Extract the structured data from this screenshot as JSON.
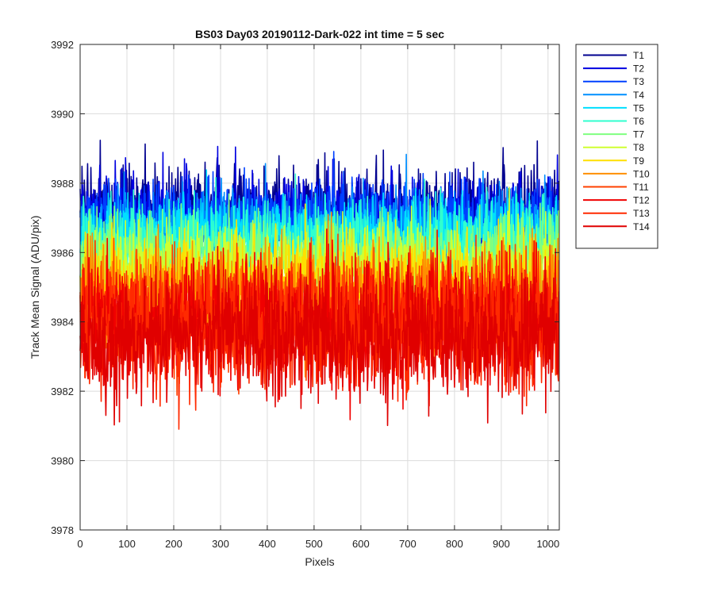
{
  "chart_data": {
    "type": "line",
    "title": "BS03 Day03 20190112-Dark-022 int time = 5 sec",
    "xlabel": "Pixels",
    "ylabel": "Track Mean Signal (ADU/pix)",
    "xlim": [
      0,
      1024
    ],
    "ylim": [
      3978,
      3992
    ],
    "xticks": [
      0,
      100,
      200,
      300,
      400,
      500,
      600,
      700,
      800,
      900,
      1000
    ],
    "yticks": [
      3978,
      3980,
      3982,
      3984,
      3986,
      3988,
      3990,
      3992
    ],
    "grid": true,
    "legend_position": "outside-top-right",
    "n_points": 1024,
    "series": [
      {
        "name": "T1",
        "color": "#00008f",
        "mean": 3987.3,
        "noise": 0.55
      },
      {
        "name": "T2",
        "color": "#0000e0",
        "mean": 3987.1,
        "noise": 0.55
      },
      {
        "name": "T3",
        "color": "#0040ff",
        "mean": 3986.9,
        "noise": 0.55
      },
      {
        "name": "T4",
        "color": "#008fff",
        "mean": 3986.7,
        "noise": 0.55
      },
      {
        "name": "T5",
        "color": "#00dfff",
        "mean": 3986.5,
        "noise": 0.55
      },
      {
        "name": "T6",
        "color": "#30ffcf",
        "mean": 3986.2,
        "noise": 0.6
      },
      {
        "name": "T7",
        "color": "#7fff80",
        "mean": 3985.9,
        "noise": 0.6
      },
      {
        "name": "T8",
        "color": "#cfff30",
        "mean": 3985.5,
        "noise": 0.65
      },
      {
        "name": "T9",
        "color": "#ffdf00",
        "mean": 3985.1,
        "noise": 0.7
      },
      {
        "name": "T10",
        "color": "#ff8f00",
        "mean": 3984.7,
        "noise": 0.75
      },
      {
        "name": "T11",
        "color": "#ff4000",
        "mean": 3984.3,
        "noise": 0.8
      },
      {
        "name": "T12",
        "color": "#f00000",
        "mean": 3984.0,
        "noise": 0.85
      },
      {
        "name": "T13",
        "color": "#ff2a00",
        "mean": 3983.8,
        "noise": 0.9
      },
      {
        "name": "T14",
        "color": "#e00000",
        "mean": 3983.6,
        "noise": 0.9
      }
    ]
  }
}
